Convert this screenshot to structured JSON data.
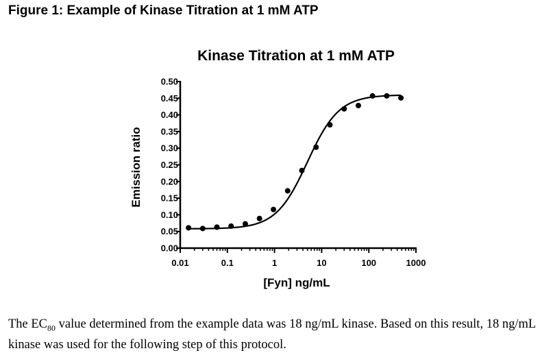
{
  "figure_caption": "Figure 1: Example of Kinase Titration at 1 mM ATP",
  "chart_data": {
    "type": "scatter",
    "title": "Kinase Titration at 1 mM ATP",
    "xlabel": "[Fyn] ng/mL",
    "ylabel": "Emission ratio",
    "xscale": "log",
    "xlim": [
      0.01,
      1000
    ],
    "ylim": [
      0.0,
      0.5
    ],
    "x_ticks": [
      0.01,
      0.1,
      1,
      10,
      100,
      1000
    ],
    "x_tick_labels": [
      "0.01",
      "0.1",
      "1",
      "10",
      "100",
      "1000"
    ],
    "y_ticks": [
      0.0,
      0.05,
      0.1,
      0.15,
      0.2,
      0.25,
      0.3,
      0.35,
      0.4,
      0.45,
      0.5
    ],
    "y_tick_labels": [
      "0.00",
      "0.05",
      "0.10",
      "0.15",
      "0.20",
      "0.25",
      "0.30",
      "0.35",
      "0.40",
      "0.45",
      "0.50"
    ],
    "grid": false,
    "legend": "none",
    "points": [
      {
        "x": 0.015,
        "y": 0.061
      },
      {
        "x": 0.03,
        "y": 0.059
      },
      {
        "x": 0.06,
        "y": 0.063
      },
      {
        "x": 0.12,
        "y": 0.066
      },
      {
        "x": 0.24,
        "y": 0.073
      },
      {
        "x": 0.48,
        "y": 0.089
      },
      {
        "x": 0.95,
        "y": 0.116
      },
      {
        "x": 1.9,
        "y": 0.172
      },
      {
        "x": 3.8,
        "y": 0.233
      },
      {
        "x": 7.6,
        "y": 0.303
      },
      {
        "x": 15,
        "y": 0.37
      },
      {
        "x": 30,
        "y": 0.418
      },
      {
        "x": 60,
        "y": 0.428
      },
      {
        "x": 120,
        "y": 0.457
      },
      {
        "x": 240,
        "y": 0.457
      },
      {
        "x": 480,
        "y": 0.451
      }
    ],
    "fit": {
      "model": "sigmoidal dose-response",
      "bottom": 0.058,
      "top": 0.46,
      "ec50": 5.0,
      "hill": 1.3
    },
    "marker_color": "#000000",
    "line_color": "#000000"
  },
  "paragraph": {
    "part1": "The EC",
    "subscript": "80",
    "part2": " value determined from the example data was 18 ng/mL kinase.  Based on this result, 18 ng/mL kinase was used for the following step of this protocol."
  }
}
